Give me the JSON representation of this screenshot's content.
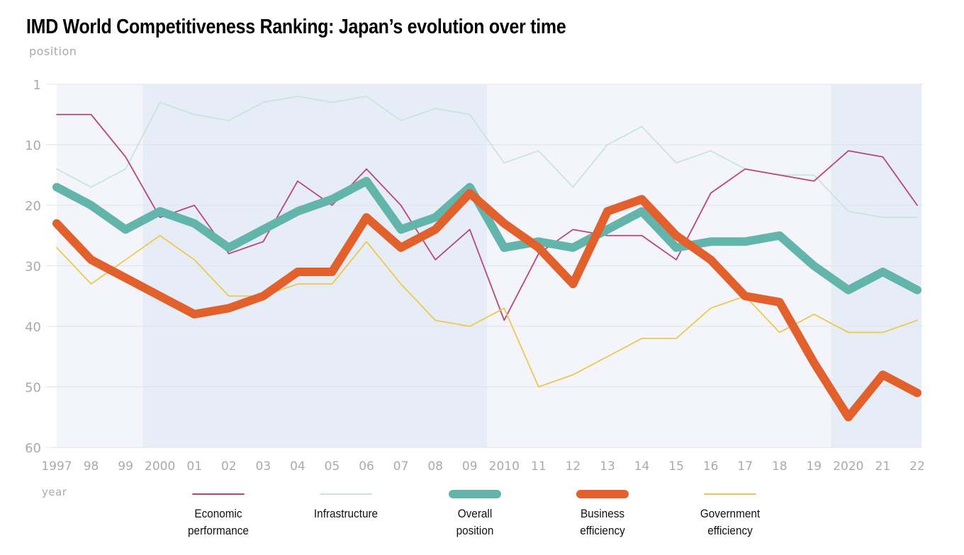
{
  "chart_data": {
    "type": "line",
    "title": "IMD World Competitiveness Ranking: Japan’s evolution over time",
    "ylabel": "position",
    "xlabel": "year",
    "x": [
      1997,
      1998,
      1999,
      2000,
      2001,
      2002,
      2003,
      2004,
      2005,
      2006,
      2007,
      2008,
      2009,
      2010,
      2011,
      2012,
      2013,
      2014,
      2015,
      2016,
      2017,
      2018,
      2019,
      2020,
      2021,
      2022
    ],
    "x_tick_labels": [
      "1997",
      "98",
      "99",
      "2000",
      "01",
      "02",
      "03",
      "04",
      "05",
      "06",
      "07",
      "08",
      "09",
      "2010",
      "11",
      "12",
      "13",
      "14",
      "15",
      "16",
      "17",
      "18",
      "19",
      "2020",
      "21",
      "22"
    ],
    "y_tick_labels": [
      "1",
      "10",
      "20",
      "30",
      "40",
      "50",
      "60"
    ],
    "ylim": [
      1,
      60
    ],
    "y_inverted": true,
    "grid": "horizontal",
    "legend_placement": "bottom",
    "shaded_periods": [
      [
        1999.5,
        2009.5
      ],
      [
        2019.5,
        2022
      ]
    ],
    "series": [
      {
        "name": "Infrastructure",
        "color": "#c9e4dd",
        "width": "thin",
        "values": [
          14,
          17,
          14,
          3,
          5,
          6,
          3,
          2,
          3,
          2,
          6,
          4,
          5,
          13,
          11,
          17,
          10,
          7,
          13,
          11,
          14,
          15,
          15,
          21,
          22,
          22
        ]
      },
      {
        "name": "Economic performance",
        "color": "#b8467c",
        "width": "thin",
        "values": [
          5,
          5,
          12,
          22,
          20,
          28,
          26,
          16,
          20,
          14,
          20,
          29,
          24,
          39,
          28,
          24,
          25,
          25,
          29,
          18,
          14,
          15,
          16,
          11,
          12,
          20
        ]
      },
      {
        "name": "Government efficiency",
        "color": "#ebc94e",
        "width": "thin",
        "values": [
          27,
          33,
          29,
          25,
          29,
          35,
          35,
          33,
          33,
          26,
          33,
          39,
          40,
          37,
          50,
          48,
          45,
          42,
          42,
          37,
          35,
          41,
          38,
          41,
          41,
          39
        ]
      },
      {
        "name": "Overall position",
        "color": "#63b5ac",
        "width": "thick",
        "values": [
          17,
          20,
          24,
          21,
          23,
          27,
          24,
          21,
          19,
          16,
          24,
          22,
          17,
          27,
          26,
          27,
          24,
          21,
          27,
          26,
          26,
          25,
          30,
          34,
          31,
          34
        ]
      },
      {
        "name": "Business efficiency",
        "color": "#e1602b",
        "width": "thick",
        "values": [
          23,
          29,
          32,
          35,
          38,
          37,
          35,
          31,
          31,
          22,
          27,
          24,
          18,
          23,
          27,
          33,
          21,
          19,
          25,
          29,
          35,
          36,
          46,
          55,
          48,
          51
        ]
      }
    ],
    "legend": [
      {
        "label": "Economic\nperformance",
        "series": "Economic performance"
      },
      {
        "label": "Infrastructure",
        "series": "Infrastructure"
      },
      {
        "label": "Overall\nposition",
        "series": "Overall position"
      },
      {
        "label": "Business\nefficiency",
        "series": "Business efficiency"
      },
      {
        "label": "Government\nefficiency",
        "series": "Government efficiency"
      }
    ]
  }
}
